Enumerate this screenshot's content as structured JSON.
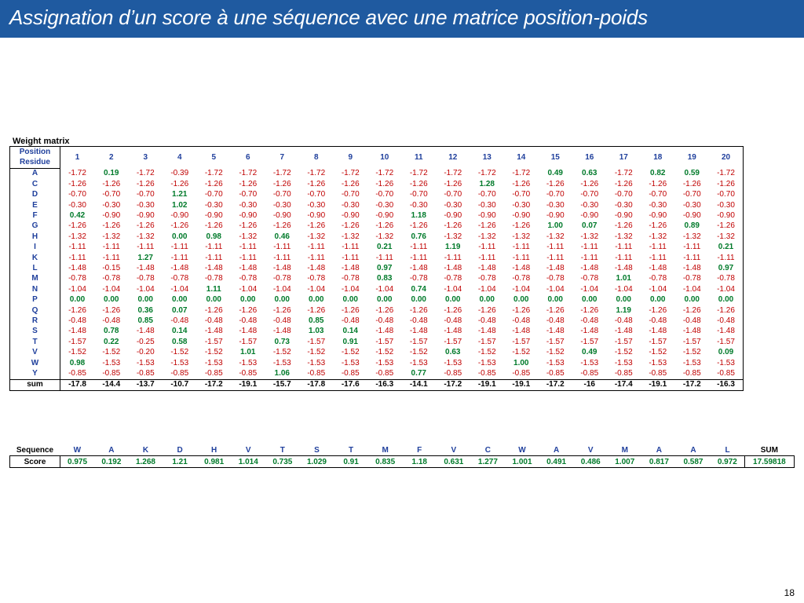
{
  "slide": {
    "title": "Assignation d’un score à une séquence avec une matrice position-poids",
    "page_number": "18"
  },
  "weight_matrix": {
    "label": "Weight matrix",
    "position_label": "Position",
    "residue_label": "Residue",
    "positions": [
      "1",
      "2",
      "3",
      "4",
      "5",
      "6",
      "7",
      "8",
      "9",
      "10",
      "11",
      "12",
      "13",
      "14",
      "15",
      "16",
      "17",
      "18",
      "19",
      "20"
    ],
    "rows": [
      {
        "residue": "A",
        "values": [
          "-1.72",
          "0.19",
          "-1.72",
          "-0.39",
          "-1.72",
          "-1.72",
          "-1.72",
          "-1.72",
          "-1.72",
          "-1.72",
          "-1.72",
          "-1.72",
          "-1.72",
          "-1.72",
          "0.49",
          "0.63",
          "-1.72",
          "0.82",
          "0.59",
          "-1.72"
        ]
      },
      {
        "residue": "C",
        "values": [
          "-1.26",
          "-1.26",
          "-1.26",
          "-1.26",
          "-1.26",
          "-1.26",
          "-1.26",
          "-1.26",
          "-1.26",
          "-1.26",
          "-1.26",
          "-1.26",
          "1.28",
          "-1.26",
          "-1.26",
          "-1.26",
          "-1.26",
          "-1.26",
          "-1.26",
          "-1.26"
        ]
      },
      {
        "residue": "D",
        "values": [
          "-0.70",
          "-0.70",
          "-0.70",
          "1.21",
          "-0.70",
          "-0.70",
          "-0.70",
          "-0.70",
          "-0.70",
          "-0.70",
          "-0.70",
          "-0.70",
          "-0.70",
          "-0.70",
          "-0.70",
          "-0.70",
          "-0.70",
          "-0.70",
          "-0.70",
          "-0.70"
        ]
      },
      {
        "residue": "E",
        "values": [
          "-0.30",
          "-0.30",
          "-0.30",
          "1.02",
          "-0.30",
          "-0.30",
          "-0.30",
          "-0.30",
          "-0.30",
          "-0.30",
          "-0.30",
          "-0.30",
          "-0.30",
          "-0.30",
          "-0.30",
          "-0.30",
          "-0.30",
          "-0.30",
          "-0.30",
          "-0.30"
        ]
      },
      {
        "residue": "F",
        "values": [
          "0.42",
          "-0.90",
          "-0.90",
          "-0.90",
          "-0.90",
          "-0.90",
          "-0.90",
          "-0.90",
          "-0.90",
          "-0.90",
          "1.18",
          "-0.90",
          "-0.90",
          "-0.90",
          "-0.90",
          "-0.90",
          "-0.90",
          "-0.90",
          "-0.90",
          "-0.90"
        ]
      },
      {
        "residue": "G",
        "values": [
          "-1.26",
          "-1.26",
          "-1.26",
          "-1.26",
          "-1.26",
          "-1.26",
          "-1.26",
          "-1.26",
          "-1.26",
          "-1.26",
          "-1.26",
          "-1.26",
          "-1.26",
          "-1.26",
          "1.00",
          "0.07",
          "-1.26",
          "-1.26",
          "0.89",
          "-1.26"
        ]
      },
      {
        "residue": "H",
        "values": [
          "-1.32",
          "-1.32",
          "-1.32",
          "0.00",
          "0.98",
          "-1.32",
          "0.46",
          "-1.32",
          "-1.32",
          "-1.32",
          "0.76",
          "-1.32",
          "-1.32",
          "-1.32",
          "-1.32",
          "-1.32",
          "-1.32",
          "-1.32",
          "-1.32",
          "-1.32"
        ]
      },
      {
        "residue": "I",
        "values": [
          "-1.11",
          "-1.11",
          "-1.11",
          "-1.11",
          "-1.11",
          "-1.11",
          "-1.11",
          "-1.11",
          "-1.11",
          "0.21",
          "-1.11",
          "1.19",
          "-1.11",
          "-1.11",
          "-1.11",
          "-1.11",
          "-1.11",
          "-1.11",
          "-1.11",
          "0.21"
        ]
      },
      {
        "residue": "K",
        "values": [
          "-1.11",
          "-1.11",
          "1.27",
          "-1.11",
          "-1.11",
          "-1.11",
          "-1.11",
          "-1.11",
          "-1.11",
          "-1.11",
          "-1.11",
          "-1.11",
          "-1.11",
          "-1.11",
          "-1.11",
          "-1.11",
          "-1.11",
          "-1.11",
          "-1.11",
          "-1.11"
        ]
      },
      {
        "residue": "L",
        "values": [
          "-1.48",
          "-0.15",
          "-1.48",
          "-1.48",
          "-1.48",
          "-1.48",
          "-1.48",
          "-1.48",
          "-1.48",
          "0.97",
          "-1.48",
          "-1.48",
          "-1.48",
          "-1.48",
          "-1.48",
          "-1.48",
          "-1.48",
          "-1.48",
          "-1.48",
          "0.97"
        ]
      },
      {
        "residue": "M",
        "values": [
          "-0.78",
          "-0.78",
          "-0.78",
          "-0.78",
          "-0.78",
          "-0.78",
          "-0.78",
          "-0.78",
          "-0.78",
          "0.83",
          "-0.78",
          "-0.78",
          "-0.78",
          "-0.78",
          "-0.78",
          "-0.78",
          "1.01",
          "-0.78",
          "-0.78",
          "-0.78"
        ]
      },
      {
        "residue": "N",
        "values": [
          "-1.04",
          "-1.04",
          "-1.04",
          "-1.04",
          "1.11",
          "-1.04",
          "-1.04",
          "-1.04",
          "-1.04",
          "-1.04",
          "0.74",
          "-1.04",
          "-1.04",
          "-1.04",
          "-1.04",
          "-1.04",
          "-1.04",
          "-1.04",
          "-1.04",
          "-1.04"
        ]
      },
      {
        "residue": "P",
        "values": [
          "0.00",
          "0.00",
          "0.00",
          "0.00",
          "0.00",
          "0.00",
          "0.00",
          "0.00",
          "0.00",
          "0.00",
          "0.00",
          "0.00",
          "0.00",
          "0.00",
          "0.00",
          "0.00",
          "0.00",
          "0.00",
          "0.00",
          "0.00"
        ]
      },
      {
        "residue": "Q",
        "values": [
          "-1.26",
          "-1.26",
          "0.36",
          "0.07",
          "-1.26",
          "-1.26",
          "-1.26",
          "-1.26",
          "-1.26",
          "-1.26",
          "-1.26",
          "-1.26",
          "-1.26",
          "-1.26",
          "-1.26",
          "-1.26",
          "1.19",
          "-1.26",
          "-1.26",
          "-1.26"
        ]
      },
      {
        "residue": "R",
        "values": [
          "-0.48",
          "-0.48",
          "0.85",
          "-0.48",
          "-0.48",
          "-0.48",
          "-0.48",
          "0.85",
          "-0.48",
          "-0.48",
          "-0.48",
          "-0.48",
          "-0.48",
          "-0.48",
          "-0.48",
          "-0.48",
          "-0.48",
          "-0.48",
          "-0.48",
          "-0.48"
        ]
      },
      {
        "residue": "S",
        "values": [
          "-1.48",
          "0.78",
          "-1.48",
          "0.14",
          "-1.48",
          "-1.48",
          "-1.48",
          "1.03",
          "0.14",
          "-1.48",
          "-1.48",
          "-1.48",
          "-1.48",
          "-1.48",
          "-1.48",
          "-1.48",
          "-1.48",
          "-1.48",
          "-1.48",
          "-1.48"
        ]
      },
      {
        "residue": "T",
        "values": [
          "-1.57",
          "0.22",
          "-0.25",
          "0.58",
          "-1.57",
          "-1.57",
          "0.73",
          "-1.57",
          "0.91",
          "-1.57",
          "-1.57",
          "-1.57",
          "-1.57",
          "-1.57",
          "-1.57",
          "-1.57",
          "-1.57",
          "-1.57",
          "-1.57",
          "-1.57"
        ]
      },
      {
        "residue": "V",
        "values": [
          "-1.52",
          "-1.52",
          "-0.20",
          "-1.52",
          "-1.52",
          "1.01",
          "-1.52",
          "-1.52",
          "-1.52",
          "-1.52",
          "-1.52",
          "0.63",
          "-1.52",
          "-1.52",
          "-1.52",
          "0.49",
          "-1.52",
          "-1.52",
          "-1.52",
          "0.09"
        ]
      },
      {
        "residue": "W",
        "values": [
          "0.98",
          "-1.53",
          "-1.53",
          "-1.53",
          "-1.53",
          "-1.53",
          "-1.53",
          "-1.53",
          "-1.53",
          "-1.53",
          "-1.53",
          "-1.53",
          "-1.53",
          "1.00",
          "-1.53",
          "-1.53",
          "-1.53",
          "-1.53",
          "-1.53",
          "-1.53"
        ]
      },
      {
        "residue": "Y",
        "values": [
          "-0.85",
          "-0.85",
          "-0.85",
          "-0.85",
          "-0.85",
          "-0.85",
          "1.06",
          "-0.85",
          "-0.85",
          "-0.85",
          "0.77",
          "-0.85",
          "-0.85",
          "-0.85",
          "-0.85",
          "-0.85",
          "-0.85",
          "-0.85",
          "-0.85",
          "-0.85"
        ]
      }
    ],
    "sum_label": "sum",
    "sums": [
      "-17.8",
      "-14.4",
      "-13.7",
      "-10.7",
      "-17.2",
      "-19.1",
      "-15.7",
      "-17.8",
      "-17.6",
      "-16.3",
      "-14.1",
      "-17.2",
      "-19.1",
      "-19.1",
      "-17.2",
      "-16",
      "-17.4",
      "-19.1",
      "-17.2",
      "-16.3"
    ]
  },
  "sequence_table": {
    "sequence_label": "Sequence",
    "score_label": "Score",
    "sum_header": "SUM",
    "residues": [
      "W",
      "A",
      "K",
      "D",
      "H",
      "V",
      "T",
      "S",
      "T",
      "M",
      "F",
      "V",
      "C",
      "W",
      "A",
      "V",
      "M",
      "A",
      "A",
      "L"
    ],
    "scores": [
      "0.975",
      "0.192",
      "1.268",
      "1.21",
      "0.981",
      "1.014",
      "0.735",
      "1.029",
      "0.91",
      "0.835",
      "1.18",
      "0.631",
      "1.277",
      "1.001",
      "0.491",
      "0.486",
      "1.007",
      "0.817",
      "0.587",
      "0.972"
    ],
    "sum_value": "17.59818"
  },
  "colors": {
    "title_bar": "#1f5aa0",
    "header_text": "#1f3f9c",
    "negative_value": "#c00000",
    "positive_value": "#007a2a"
  }
}
